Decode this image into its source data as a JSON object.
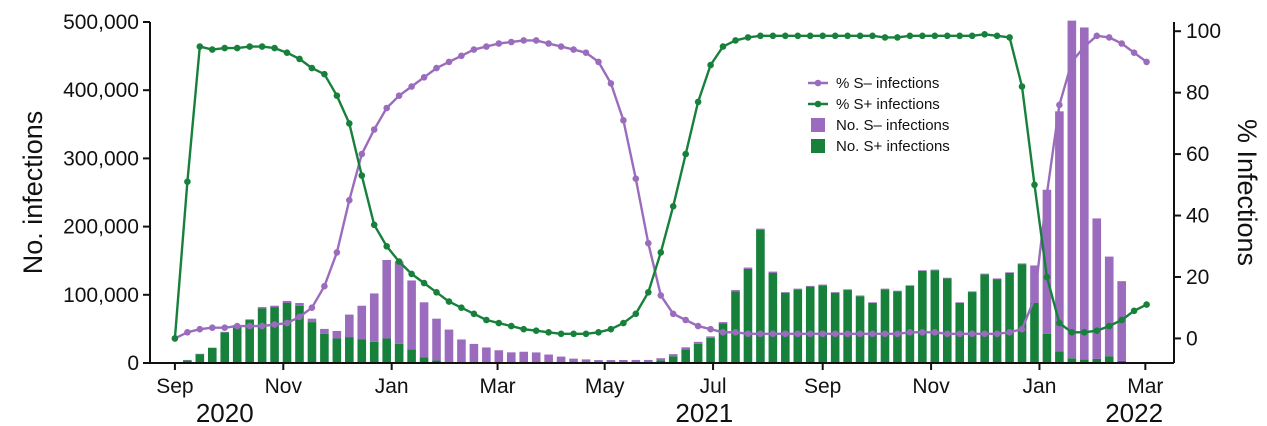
{
  "chart_data": {
    "type": "bar+line",
    "colors": {
      "s_minus": "#9b6cbd",
      "s_plus": "#17813c",
      "axis": "#111111"
    },
    "left_axis": {
      "title": "No. infections",
      "ylim": [
        0,
        500000
      ],
      "ticks": [
        0,
        100000,
        200000,
        300000,
        400000,
        500000
      ],
      "tick_labels": [
        "0",
        "100,000",
        "200,000",
        "300,000",
        "400,000",
        "500,000"
      ]
    },
    "right_axis": {
      "title": "% Infections",
      "ylim": [
        -8,
        103
      ],
      "ticks": [
        0,
        20,
        40,
        60,
        80,
        100
      ],
      "tick_labels": [
        "0",
        "20",
        "40",
        "60",
        "80",
        "100"
      ]
    },
    "x_axis": {
      "ticks": [
        {
          "label": "Sep",
          "x": 0
        },
        {
          "label": "Nov",
          "x": 8.7
        },
        {
          "label": "Jan",
          "x": 17.4
        },
        {
          "label": "Mar",
          "x": 25.9
        },
        {
          "label": "May",
          "x": 34.5
        },
        {
          "label": "Jul",
          "x": 43.2
        },
        {
          "label": "Sep",
          "x": 52.0
        },
        {
          "label": "Nov",
          "x": 60.7
        },
        {
          "label": "Jan",
          "x": 69.4
        },
        {
          "label": "Mar",
          "x": 77.9
        }
      ],
      "years": [
        {
          "label": "2020",
          "x": 4.0
        },
        {
          "label": "2021",
          "x": 42.5
        },
        {
          "label": "2022",
          "x": 77.0
        }
      ],
      "xlim": [
        -2,
        80.2
      ]
    },
    "legend": {
      "position": "top-right",
      "entries": [
        {
          "label": "% S– infections",
          "kind": "line",
          "series": "s_minus"
        },
        {
          "label": "% S+ infections",
          "kind": "line",
          "series": "s_plus"
        },
        {
          "label": "No. S– infections",
          "kind": "bar",
          "series": "s_minus"
        },
        {
          "label": "No. S+ infections",
          "kind": "bar",
          "series": "s_plus"
        }
      ]
    },
    "bars": {
      "first_week": 1,
      "s_plus": [
        4000,
        13000,
        22000,
        45000,
        55000,
        63000,
        80000,
        82000,
        88000,
        84000,
        60000,
        43000,
        36000,
        38000,
        35000,
        31000,
        36000,
        28000,
        20000,
        8000,
        4000,
        2000,
        1500,
        1000,
        800,
        700,
        600,
        500,
        500,
        400,
        400,
        400,
        300,
        300,
        300,
        400,
        500,
        1500,
        4000,
        10000,
        20000,
        28000,
        37000,
        58000,
        105000,
        138000,
        195000,
        132000,
        103000,
        108000,
        112000,
        114000,
        103000,
        107000,
        98000,
        88000,
        108000,
        105000,
        113000,
        135000,
        136000,
        124000,
        88000,
        104000,
        130000,
        123000,
        132000,
        145000,
        88000,
        43000,
        17000,
        7000,
        5000,
        6000,
        10000,
        3000
      ],
      "s_minus": [
        500,
        500,
        500,
        700,
        700,
        1000,
        2000,
        2000,
        3000,
        4000,
        5000,
        7000,
        11000,
        33000,
        49000,
        71000,
        115000,
        121000,
        101000,
        81000,
        61000,
        47000,
        33000,
        27000,
        22000,
        18000,
        15000,
        16000,
        15000,
        12000,
        9000,
        6000,
        5000,
        4000,
        4000,
        4000,
        4000,
        3000,
        3000,
        3000,
        3000,
        3000,
        2000,
        2000,
        2000,
        2000,
        2000,
        2000,
        1000,
        1000,
        1000,
        1000,
        1000,
        1000,
        1000,
        1000,
        1000,
        1000,
        1000,
        1000,
        1000,
        1000,
        1000,
        1000,
        1000,
        1000,
        1000,
        1000,
        55000,
        211000,
        352000,
        495000,
        487000,
        206000,
        146000,
        117000
      ]
    },
    "lines": {
      "first_week": 0,
      "s_minus_pct": [
        0,
        2,
        3,
        3.5,
        3.5,
        4,
        4,
        4,
        4.5,
        5,
        7,
        10,
        17,
        28,
        45,
        60,
        68,
        75,
        79,
        82,
        85,
        88,
        90,
        92,
        94,
        95,
        96,
        96.5,
        97,
        97,
        96,
        95,
        94,
        93,
        90,
        83,
        71,
        52,
        31,
        14,
        8,
        6,
        4,
        3,
        2,
        2,
        1.5,
        1.5,
        1.5,
        1.5,
        1.5,
        1.5,
        1.5,
        1.5,
        1.5,
        1.5,
        1.5,
        1.5,
        1.5,
        2,
        2,
        2,
        1.5,
        1.5,
        1.5,
        1.5,
        1.5,
        2,
        3,
        13,
        47,
        76,
        90,
        95,
        98.5,
        98,
        96,
        93,
        90
      ],
      "s_plus_pct": [
        0,
        51,
        95,
        94,
        94.5,
        94.5,
        95,
        95,
        94.5,
        93,
        91,
        88,
        86,
        79,
        70,
        53,
        37,
        30,
        25,
        21,
        18,
        15,
        12,
        10,
        8,
        6,
        5,
        4,
        3,
        2.5,
        2,
        1.5,
        1.5,
        1.5,
        2,
        3,
        5,
        8,
        15,
        28,
        43,
        60,
        77,
        89,
        95,
        97,
        98,
        98.5,
        98.5,
        98.5,
        98.5,
        98.5,
        98.5,
        98.5,
        98.5,
        98.5,
        98.5,
        98,
        98,
        98.5,
        98.5,
        98.5,
        98.5,
        98.5,
        98.5,
        99,
        98.5,
        98,
        82,
        50,
        20,
        5,
        2,
        2,
        2.5,
        4,
        6,
        9,
        11
      ]
    }
  }
}
